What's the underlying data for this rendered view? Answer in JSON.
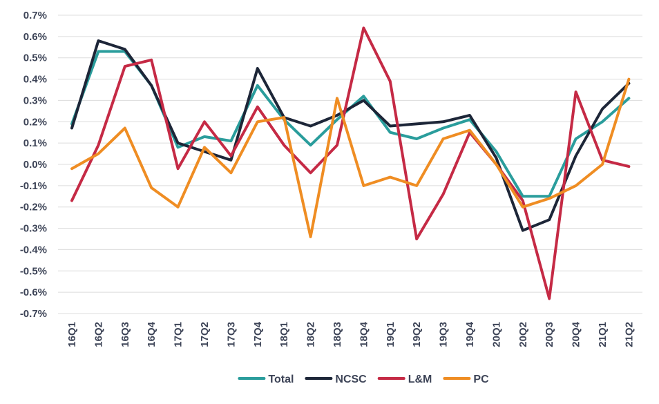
{
  "chart_data": {
    "type": "line",
    "title": "",
    "xlabel": "",
    "ylabel": "",
    "ylim": [
      -0.7,
      0.7
    ],
    "ytick_values": [
      0.7,
      0.6,
      0.5,
      0.4,
      0.3,
      0.2,
      0.1,
      0.0,
      -0.1,
      -0.2,
      -0.3,
      -0.4,
      -0.5,
      -0.6,
      -0.7
    ],
    "ytick_labels": [
      "0.7%",
      "0.6%",
      "0.5%",
      "0.4%",
      "0.3%",
      "0.2%",
      "0.1%",
      "0.0%",
      "-0.1%",
      "-0.2%",
      "-0.3%",
      "-0.4%",
      "-0.5%",
      "-0.6%",
      "-0.7%"
    ],
    "categories": [
      "16Q1",
      "16Q2",
      "16Q3",
      "16Q4",
      "17Q1",
      "17Q2",
      "17Q3",
      "17Q4",
      "18Q1",
      "18Q2",
      "18Q3",
      "18Q4",
      "19Q1",
      "19Q2",
      "19Q3",
      "19Q4",
      "20Q1",
      "20Q2",
      "20Q3",
      "20Q4",
      "21Q1",
      "21Q2"
    ],
    "grid": true,
    "legend_position": "bottom",
    "series": [
      {
        "name": "Total",
        "color": "#2a9d9c",
        "values": [
          0.19,
          0.53,
          0.53,
          0.37,
          0.08,
          0.13,
          0.11,
          0.37,
          0.21,
          0.09,
          0.21,
          0.32,
          0.15,
          0.12,
          0.17,
          0.21,
          0.06,
          -0.15,
          -0.15,
          0.12,
          0.2,
          0.31
        ]
      },
      {
        "name": "NCSC",
        "color": "#1d2638",
        "values": [
          0.17,
          0.58,
          0.54,
          0.37,
          0.1,
          0.06,
          0.02,
          0.45,
          0.22,
          0.18,
          0.23,
          0.3,
          0.18,
          0.19,
          0.2,
          0.23,
          0.03,
          -0.31,
          -0.26,
          0.04,
          0.26,
          0.38
        ]
      },
      {
        "name": "L&M",
        "color": "#c52a45",
        "values": [
          -0.17,
          0.09,
          0.46,
          0.49,
          -0.02,
          0.2,
          0.04,
          0.27,
          0.09,
          -0.04,
          0.09,
          0.64,
          0.39,
          -0.35,
          -0.14,
          0.15,
          0.0,
          -0.17,
          -0.63,
          0.34,
          0.02,
          -0.01
        ]
      },
      {
        "name": "PC",
        "color": "#ef8d23",
        "values": [
          -0.02,
          0.05,
          0.17,
          -0.11,
          -0.2,
          0.08,
          -0.04,
          0.2,
          0.22,
          -0.34,
          0.31,
          -0.1,
          -0.06,
          -0.1,
          0.12,
          0.16,
          0.0,
          -0.2,
          -0.16,
          -0.1,
          0.0,
          0.4
        ]
      }
    ]
  }
}
